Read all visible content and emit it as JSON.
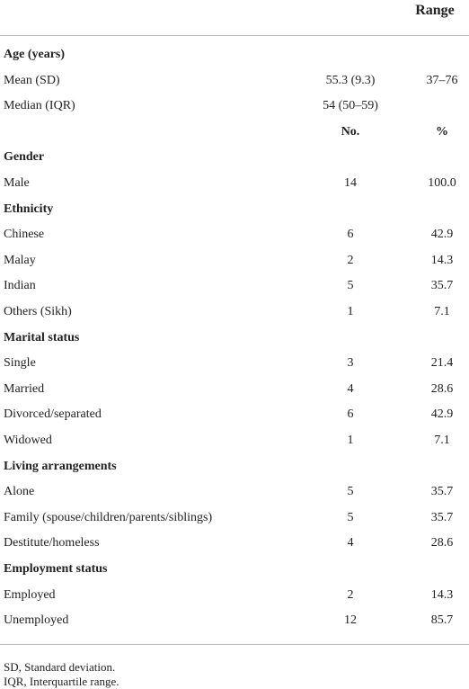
{
  "table": {
    "header": "Range",
    "age": {
      "title": "Age (years)",
      "rows": [
        [
          "Mean (SD)",
          "55.3 (9.3)",
          "37–76"
        ],
        [
          "Median (IQR)",
          "54 (50–59)"
        ]
      ]
    },
    "subheader": [
      "No.",
      "%"
    ],
    "groups": [
      {
        "title": "Gender",
        "rows": [
          [
            "Male",
            "14",
            "100.0"
          ]
        ]
      },
      {
        "title": "Ethnicity",
        "rows": [
          [
            "Chinese",
            "6",
            "42.9"
          ],
          [
            "Malay",
            "2",
            "14.3"
          ],
          [
            "Indian",
            "5",
            "35.7"
          ],
          [
            "Others (Sikh)",
            "1",
            "7.1"
          ]
        ]
      },
      {
        "title": "Marital status",
        "rows": [
          [
            "Single",
            "3",
            "21.4"
          ],
          [
            "Married",
            "4",
            "28.6"
          ],
          [
            "Divorced/separated",
            "6",
            "42.9"
          ],
          [
            "Widowed",
            "1",
            "7.1"
          ]
        ]
      },
      {
        "title": "Living arrangements",
        "rows": [
          [
            "Alone",
            "5",
            "35.7"
          ],
          [
            "Family (spouse/children/parents/siblings)",
            "5",
            "35.7"
          ],
          [
            "Destitute/homeless",
            "4",
            "28.6"
          ]
        ]
      },
      {
        "title": "Employment status",
        "rows": [
          [
            "Employed",
            "2",
            "14.3"
          ],
          [
            "Unemployed",
            "12",
            "85.7"
          ]
        ]
      }
    ]
  },
  "footnotes": [
    "SD, Standard deviation.",
    "IQR, Interquartile range."
  ]
}
